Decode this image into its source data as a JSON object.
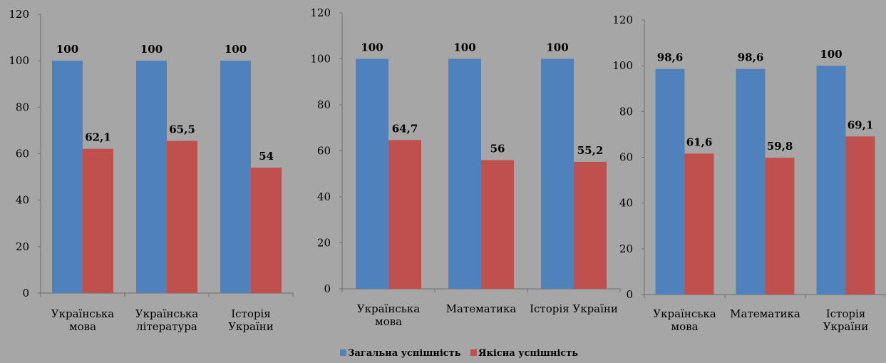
{
  "colors": {
    "series1": "#4f81bd",
    "series2": "#c0504d",
    "background": "#a6a6a6",
    "axis": "#6f6f6f"
  },
  "legend": {
    "placement": "bottom-center",
    "items": [
      "Загальна успішність",
      "Якісна успішність"
    ]
  },
  "chart_data": [
    {
      "type": "bar",
      "categories": [
        [
          "Українська",
          "мова"
        ],
        [
          "Українська",
          "література"
        ],
        [
          "Історія",
          "України"
        ]
      ],
      "series": [
        {
          "name": "Загальна успішнісь",
          "values": [
            100,
            100,
            100
          ],
          "labels": [
            "100",
            "100",
            "100"
          ]
        },
        {
          "name": "Якісна успішність",
          "values": [
            62.1,
            65.5,
            54
          ],
          "labels": [
            "62,1",
            "65,5",
            "54"
          ]
        }
      ],
      "ylim": [
        0,
        120
      ],
      "yticks": [
        0,
        20,
        40,
        60,
        80,
        100,
        120
      ],
      "grid": false
    },
    {
      "type": "bar",
      "categories": [
        [
          "Українська",
          "мова"
        ],
        [
          "Математика"
        ],
        [
          "Історія України"
        ]
      ],
      "series": [
        {
          "name": "Загальна успішнісь",
          "values": [
            100,
            100,
            100
          ],
          "labels": [
            "100",
            "100",
            "100"
          ]
        },
        {
          "name": "Якісна успішність",
          "values": [
            64.7,
            56,
            55.2
          ],
          "labels": [
            "64,7",
            "56",
            "55,2"
          ]
        }
      ],
      "ylim": [
        0,
        120
      ],
      "yticks": [
        0,
        20,
        40,
        60,
        80,
        100,
        120
      ],
      "grid": false
    },
    {
      "type": "bar",
      "categories": [
        [
          "Українська",
          "мова"
        ],
        [
          "Математика"
        ],
        [
          "Історія",
          "України"
        ]
      ],
      "series": [
        {
          "name": "Загальна успішнісь",
          "values": [
            98.6,
            98.6,
            100
          ],
          "labels": [
            "98,6",
            "98,6",
            "100"
          ]
        },
        {
          "name": "Якісна успішність",
          "values": [
            61.6,
            59.8,
            69.1
          ],
          "labels": [
            "61,6",
            "59,8",
            "69,1"
          ]
        }
      ],
      "ylim": [
        0,
        120
      ],
      "yticks": [
        0,
        20,
        40,
        60,
        80,
        100,
        120
      ],
      "grid": false
    }
  ]
}
